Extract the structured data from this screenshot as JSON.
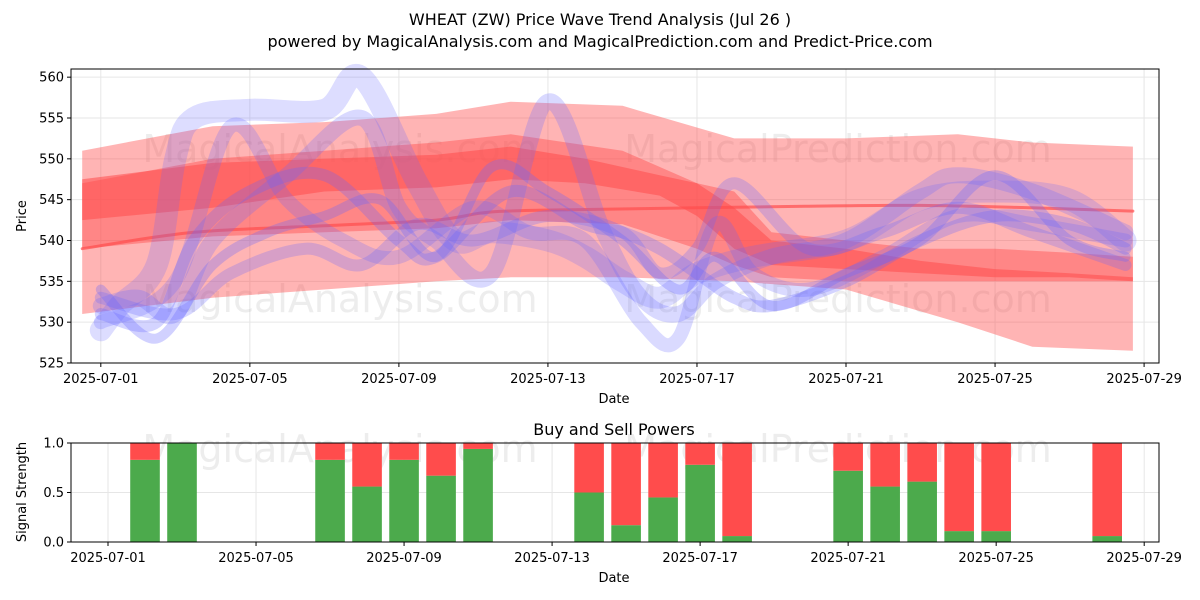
{
  "chart_data": [
    {
      "type": "area",
      "title": "WHEAT (ZW) Price Wave Trend Analysis (Jul 26 )",
      "subtitle": "powered by MagicalAnalysis.com and MagicalPrediction.com and Predict-Price.com",
      "xlabel": "Date",
      "ylabel": "Price",
      "ylim": [
        525,
        561
      ],
      "yticks": [
        525,
        530,
        535,
        540,
        545,
        550,
        555,
        560
      ],
      "xlim": [
        -0.8,
        28.4
      ],
      "xtick_labels": [
        "2025-07-01",
        "2025-07-05",
        "2025-07-09",
        "2025-07-13",
        "2025-07-17",
        "2025-07-21",
        "2025-07-25",
        "2025-07-29"
      ],
      "xtick_days": [
        0,
        4,
        8,
        12,
        16,
        20,
        24,
        28
      ],
      "grid": true,
      "colors": {
        "red": "#ff4d4d",
        "blue": "#6666ff"
      },
      "red_bands": [
        {
          "name": "outer",
          "x": [
            -0.5,
            3,
            6,
            9,
            11,
            14,
            17,
            20,
            23,
            25,
            27.7
          ],
          "upper": [
            551,
            554,
            554.5,
            555.5,
            557,
            556.5,
            552.5,
            552.5,
            553,
            552,
            551.5
          ],
          "lower": [
            531,
            533,
            534,
            535,
            535.5,
            535.5,
            535,
            534,
            530,
            527,
            526.5
          ]
        },
        {
          "name": "middle",
          "x": [
            -0.5,
            3,
            6,
            9,
            11,
            14,
            16,
            17,
            18,
            20,
            22,
            24,
            26,
            27.7
          ],
          "upper": [
            547,
            550,
            551,
            552,
            553,
            551,
            547,
            546,
            541,
            540,
            539,
            539,
            538.5,
            538
          ],
          "lower": [
            539,
            540.5,
            541,
            541.5,
            542.5,
            542,
            539,
            537,
            535.5,
            535,
            535,
            535,
            535,
            535
          ]
        },
        {
          "name": "inner",
          "x": [
            -0.5,
            3,
            6,
            9,
            11,
            13,
            15,
            16,
            17,
            18,
            20,
            22,
            24,
            26,
            27.7
          ],
          "upper": [
            547.5,
            549.5,
            550,
            550.5,
            551.5,
            550,
            548,
            547,
            544,
            540,
            539,
            537.5,
            536.5,
            536,
            535.5
          ],
          "lower": [
            542.5,
            544,
            546,
            546.5,
            547.5,
            547,
            545.5,
            543,
            539,
            537,
            536.5,
            536,
            535.5,
            535.5,
            535
          ]
        }
      ],
      "series": [
        {
          "name": "trend",
          "x": [
            -0.5,
            2.5,
            6,
            9,
            10.5,
            13,
            16,
            19,
            22,
            25,
            27.7
          ],
          "values": [
            539,
            541,
            541.8,
            542.5,
            543.5,
            543.8,
            544,
            544.2,
            544.3,
            544,
            543.6
          ]
        },
        {
          "name": "wave-1",
          "x": [
            0,
            0.5,
            1.5,
            2,
            2.5,
            4,
            6,
            7,
            8.5,
            9.5,
            10.5,
            12,
            13,
            14,
            15,
            16,
            17.5,
            20,
            22,
            24,
            26,
            27.5
          ],
          "values": [
            529,
            532,
            537,
            550,
            555,
            556,
            556,
            560,
            547,
            540,
            541,
            540,
            538,
            535,
            533,
            536,
            538,
            540,
            545,
            546,
            545,
            540
          ]
        },
        {
          "name": "wave-2",
          "x": [
            0,
            1,
            2,
            3,
            5,
            7,
            8,
            9,
            10.5,
            12,
            13.5,
            14.5,
            15.5,
            16.5,
            18,
            20,
            22,
            23,
            25,
            27.5
          ],
          "values": [
            532,
            533,
            531,
            540,
            548,
            555,
            544,
            540,
            536,
            557,
            541,
            533,
            531,
            535,
            538,
            540,
            546,
            548,
            546,
            541
          ]
        },
        {
          "name": "wave-3",
          "x": [
            0,
            1.5,
            2.5,
            4,
            6,
            8,
            9,
            11,
            13,
            14,
            15,
            16,
            17,
            18,
            20,
            22,
            24,
            26,
            27.5
          ],
          "values": [
            531,
            530,
            540,
            546,
            548,
            540,
            538,
            546,
            542,
            541,
            539,
            536,
            533,
            532,
            535,
            540,
            543,
            542,
            539
          ]
        },
        {
          "name": "wave-4",
          "x": [
            0,
            2,
            3.5,
            5,
            6.5,
            8,
            10,
            11.5,
            13,
            14.5,
            15.5,
            16.5,
            17.5,
            19,
            21,
            23,
            25,
            27.5
          ],
          "values": [
            530,
            535,
            554,
            545,
            540,
            538,
            544,
            541,
            540,
            530,
            528,
            542,
            536,
            534,
            538,
            543,
            542,
            540
          ]
        },
        {
          "name": "wave-5",
          "x": [
            0,
            1.5,
            3,
            4.5,
            6,
            7.5,
            9,
            10.5,
            12,
            14,
            15.5,
            16.5,
            18,
            20,
            22,
            24,
            26,
            27.5
          ],
          "values": [
            534,
            528,
            537,
            541,
            543,
            545,
            538,
            549,
            546,
            540,
            534,
            538,
            532,
            536,
            540,
            548,
            540,
            538
          ]
        },
        {
          "name": "wave-6",
          "x": [
            0,
            2,
            3.5,
            5.5,
            7,
            8.5,
            10,
            12,
            14,
            15,
            16,
            17,
            19,
            21,
            23,
            25,
            27.5
          ],
          "values": [
            533,
            531,
            536,
            539,
            537,
            542,
            540,
            543,
            541,
            536,
            539,
            547,
            539,
            541,
            544,
            541,
            537
          ]
        }
      ]
    },
    {
      "type": "bar",
      "title": "Buy and Sell Powers",
      "xlabel": "Date",
      "ylabel": "Signal Strength",
      "ylim": [
        0,
        1
      ],
      "yticks": [
        0.0,
        0.5,
        1.0
      ],
      "ytick_labels": [
        "0.0",
        "0.5",
        "1.0"
      ],
      "xlim": [
        -1.0,
        28.4
      ],
      "xtick_labels": [
        "2025-07-01",
        "2025-07-05",
        "2025-07-09",
        "2025-07-13",
        "2025-07-17",
        "2025-07-21",
        "2025-07-25",
        "2025-07-29"
      ],
      "xtick_days": [
        0,
        4,
        8,
        12,
        16,
        20,
        24,
        28
      ],
      "grid": true,
      "colors": {
        "buy": "#4caa4c",
        "sell": "#ff4c4c"
      },
      "categories": [
        1,
        2,
        6,
        7,
        8,
        9,
        10,
        13,
        14,
        15,
        16,
        17,
        20,
        21,
        22,
        23,
        24,
        27
      ],
      "series": [
        {
          "name": "buy",
          "values": [
            0.83,
            1.0,
            0.83,
            0.56,
            0.83,
            0.67,
            0.94,
            0.5,
            0.17,
            0.45,
            0.78,
            0.06,
            0.72,
            0.56,
            0.61,
            0.11,
            0.11,
            0.06
          ]
        },
        {
          "name": "sell",
          "values": [
            0.17,
            0.0,
            0.17,
            0.44,
            0.17,
            0.33,
            0.06,
            0.5,
            0.83,
            0.55,
            0.22,
            0.94,
            0.28,
            0.44,
            0.39,
            0.89,
            0.89,
            0.94
          ]
        }
      ]
    }
  ],
  "watermarks": [
    "MagicalAnalysis.com",
    "MagicalPrediction.com"
  ]
}
